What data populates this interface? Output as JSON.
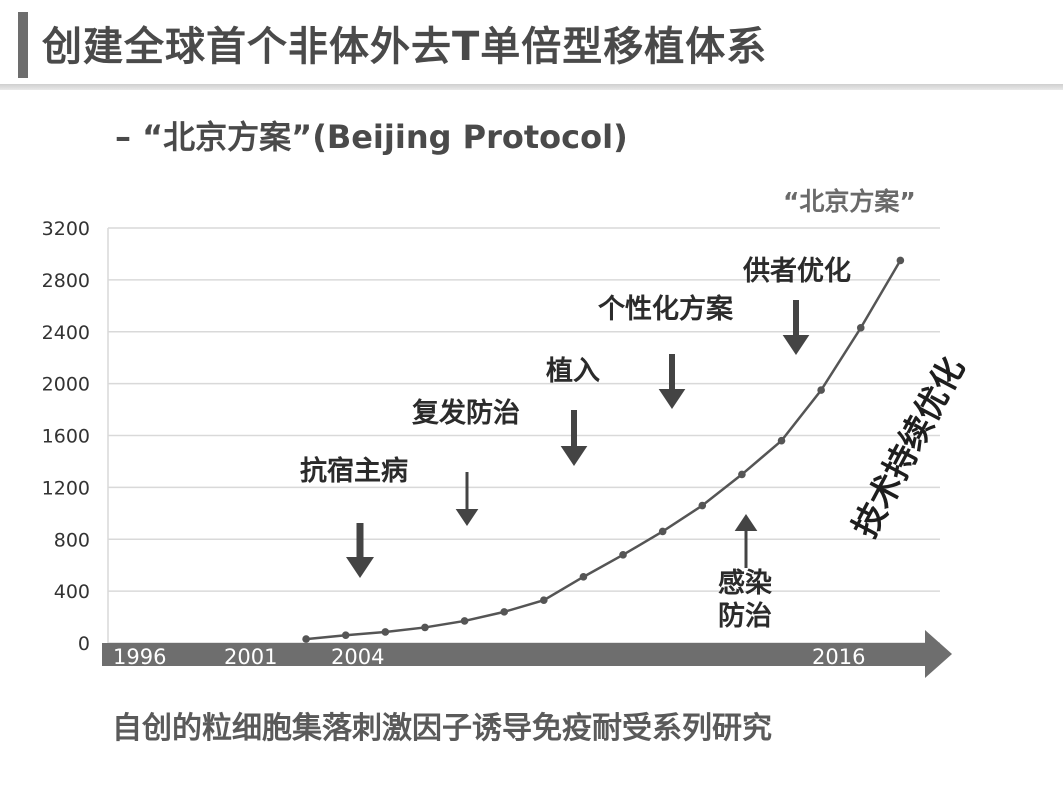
{
  "header": {
    "title": "创建全球首个非体外去T单倍型移植体系",
    "subtitle": "– “北京方案”(Beijing Protocol)"
  },
  "footer": {
    "text": "自创的粒细胞集落刺激因子诱导免疫耐受系列研究"
  },
  "chart_data": {
    "type": "line",
    "title": "",
    "xlabel": "",
    "ylabel": "",
    "ylim": [
      0,
      3200
    ],
    "y_ticks": [
      0,
      400,
      800,
      1200,
      1600,
      2000,
      2400,
      2800,
      3200
    ],
    "grid": true,
    "series": [
      {
        "x": [
          2001,
          2002,
          2003,
          2004,
          2005,
          2006,
          2007,
          2008,
          2009,
          2010,
          2011,
          2012,
          2013,
          2014,
          2015,
          2016
        ],
        "values": [
          30,
          60,
          85,
          120,
          170,
          240,
          330,
          510,
          680,
          860,
          1060,
          1300,
          1560,
          1950,
          2430,
          2950
        ]
      }
    ],
    "x_tick_labels": [
      "1996",
      "2001",
      "2004",
      "2016"
    ],
    "series_end_label": "“北京方案”",
    "side_label": "技术持续优化",
    "annotations": [
      {
        "text": "抗宿主病",
        "arrow": "down"
      },
      {
        "text": "复发防治",
        "arrow": "down"
      },
      {
        "text": "植入",
        "arrow": "down"
      },
      {
        "text": "个性化方案",
        "arrow": "down"
      },
      {
        "text": "供者优化",
        "arrow": "down"
      },
      {
        "text": "感染\n防治",
        "arrow": "up"
      }
    ],
    "colors": {
      "line": "#555555",
      "grid": "#d9d9d9",
      "axis_band": "#6e6e6e",
      "arrow": "#444444",
      "annotation_text": "#2b2b2b"
    }
  }
}
